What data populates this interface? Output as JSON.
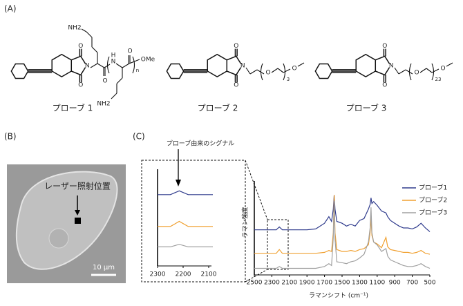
{
  "panel_a": {
    "label": "(A)",
    "structures": [
      {
        "name": "プローブ 1",
        "atoms": [
          "O",
          "N",
          "O",
          "NH2",
          "O",
          "H",
          "N",
          "NH2",
          "O",
          "n",
          "OMe"
        ]
      },
      {
        "name": "プローブ 2",
        "atoms": [
          "O",
          "N",
          "O",
          "O",
          "3",
          "O"
        ]
      },
      {
        "name": "プローブ 3",
        "atoms": [
          "O",
          "N",
          "O",
          "O",
          "23",
          "O"
        ]
      }
    ]
  },
  "panel_b": {
    "label": "(B)",
    "annotation": "レーザー照射位置",
    "scale_bar": "10 μm"
  },
  "panel_c": {
    "label": "(C)",
    "annotation": "プローブ由来のシグナル"
  },
  "chart_data": {
    "type": "line",
    "x_label": "ラマンシフト (cm⁻¹)",
    "y_label": "ラマン強度",
    "x": [
      2500,
      2400,
      2300,
      2250,
      2215,
      2180,
      2100,
      2000,
      1900,
      1800,
      1700,
      1650,
      1620,
      1600,
      1590,
      1580,
      1560,
      1500,
      1450,
      1400,
      1350,
      1300,
      1250,
      1200,
      1180,
      1170,
      1160,
      1140,
      1100,
      1050,
      1000,
      980,
      950,
      900,
      850,
      800,
      750,
      700,
      650,
      600,
      550,
      500
    ],
    "series": [
      {
        "name": "プローブ1",
        "color": "#2e3a8c",
        "values": [
          48,
          48,
          48,
          48,
          51,
          48,
          48,
          48,
          48,
          49,
          55,
          62,
          57,
          70,
          85,
          70,
          57,
          55,
          52,
          54,
          52,
          58,
          60,
          70,
          75,
          82,
          76,
          78,
          74,
          68,
          66,
          62,
          58,
          55,
          52,
          50,
          50,
          49,
          51,
          55,
          50,
          46
        ]
      },
      {
        "name": "プローブ2",
        "color": "#f0a030",
        "values": [
          23,
          23,
          23,
          23,
          27,
          23,
          23,
          23,
          23,
          23,
          24,
          26,
          25,
          45,
          85,
          45,
          27,
          25,
          25,
          26,
          25,
          27,
          28,
          32,
          45,
          61,
          42,
          35,
          33,
          29,
          40,
          30,
          27,
          26,
          25,
          24,
          24,
          23,
          24,
          26,
          23,
          22
        ]
      },
      {
        "name": "プローブ3",
        "color": "#a0a0a0",
        "values": [
          7,
          7,
          7,
          7,
          9,
          7,
          7,
          7,
          7,
          7,
          9,
          12,
          10,
          40,
          79,
          38,
          14,
          13,
          12,
          14,
          15,
          18,
          22,
          35,
          50,
          72,
          45,
          35,
          32,
          25,
          28,
          20,
          16,
          14,
          12,
          10,
          9,
          9,
          10,
          12,
          9,
          7
        ]
      }
    ],
    "xlim": [
      2500,
      500
    ],
    "xticks": [
      2500,
      2300,
      2100,
      1900,
      1700,
      1500,
      1300,
      1100,
      900,
      700,
      500
    ],
    "ylim": [
      0,
      100
    ],
    "legend": "upper right",
    "inset": {
      "xlim": [
        2300,
        2100
      ],
      "xticks": [
        2300,
        2200,
        2100
      ],
      "ylim": [
        -8,
        68
      ]
    }
  }
}
